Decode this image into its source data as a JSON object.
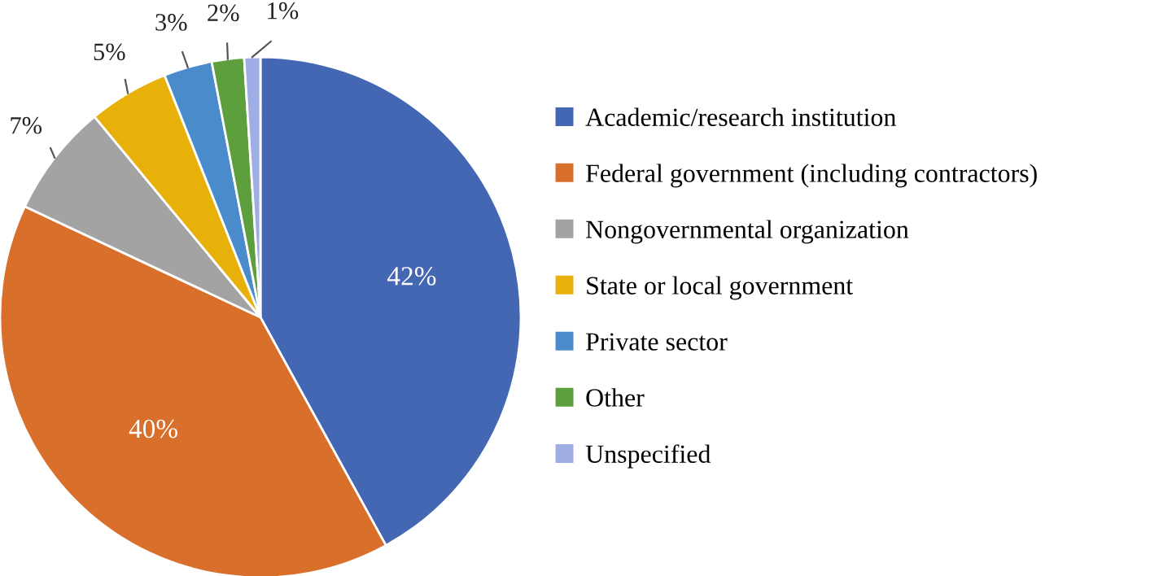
{
  "chart_data": {
    "type": "pie",
    "categories": [
      "Academic/research institution",
      "Federal government (including contractors)",
      "Nongovernmental organization",
      "State or local government",
      "Private sector",
      "Other",
      "Unspecified"
    ],
    "values": [
      42,
      40,
      7,
      5,
      3,
      2,
      1
    ],
    "colors": [
      "#4467b4",
      "#d86f2a",
      "#a3a3a3",
      "#e8b10a",
      "#4a8ccb",
      "#5c9f3c",
      "#9eaee4"
    ],
    "value_labels": [
      "42%",
      "40%",
      "7%",
      "5%",
      "3%",
      "2%",
      "1%"
    ],
    "legend": "right"
  }
}
